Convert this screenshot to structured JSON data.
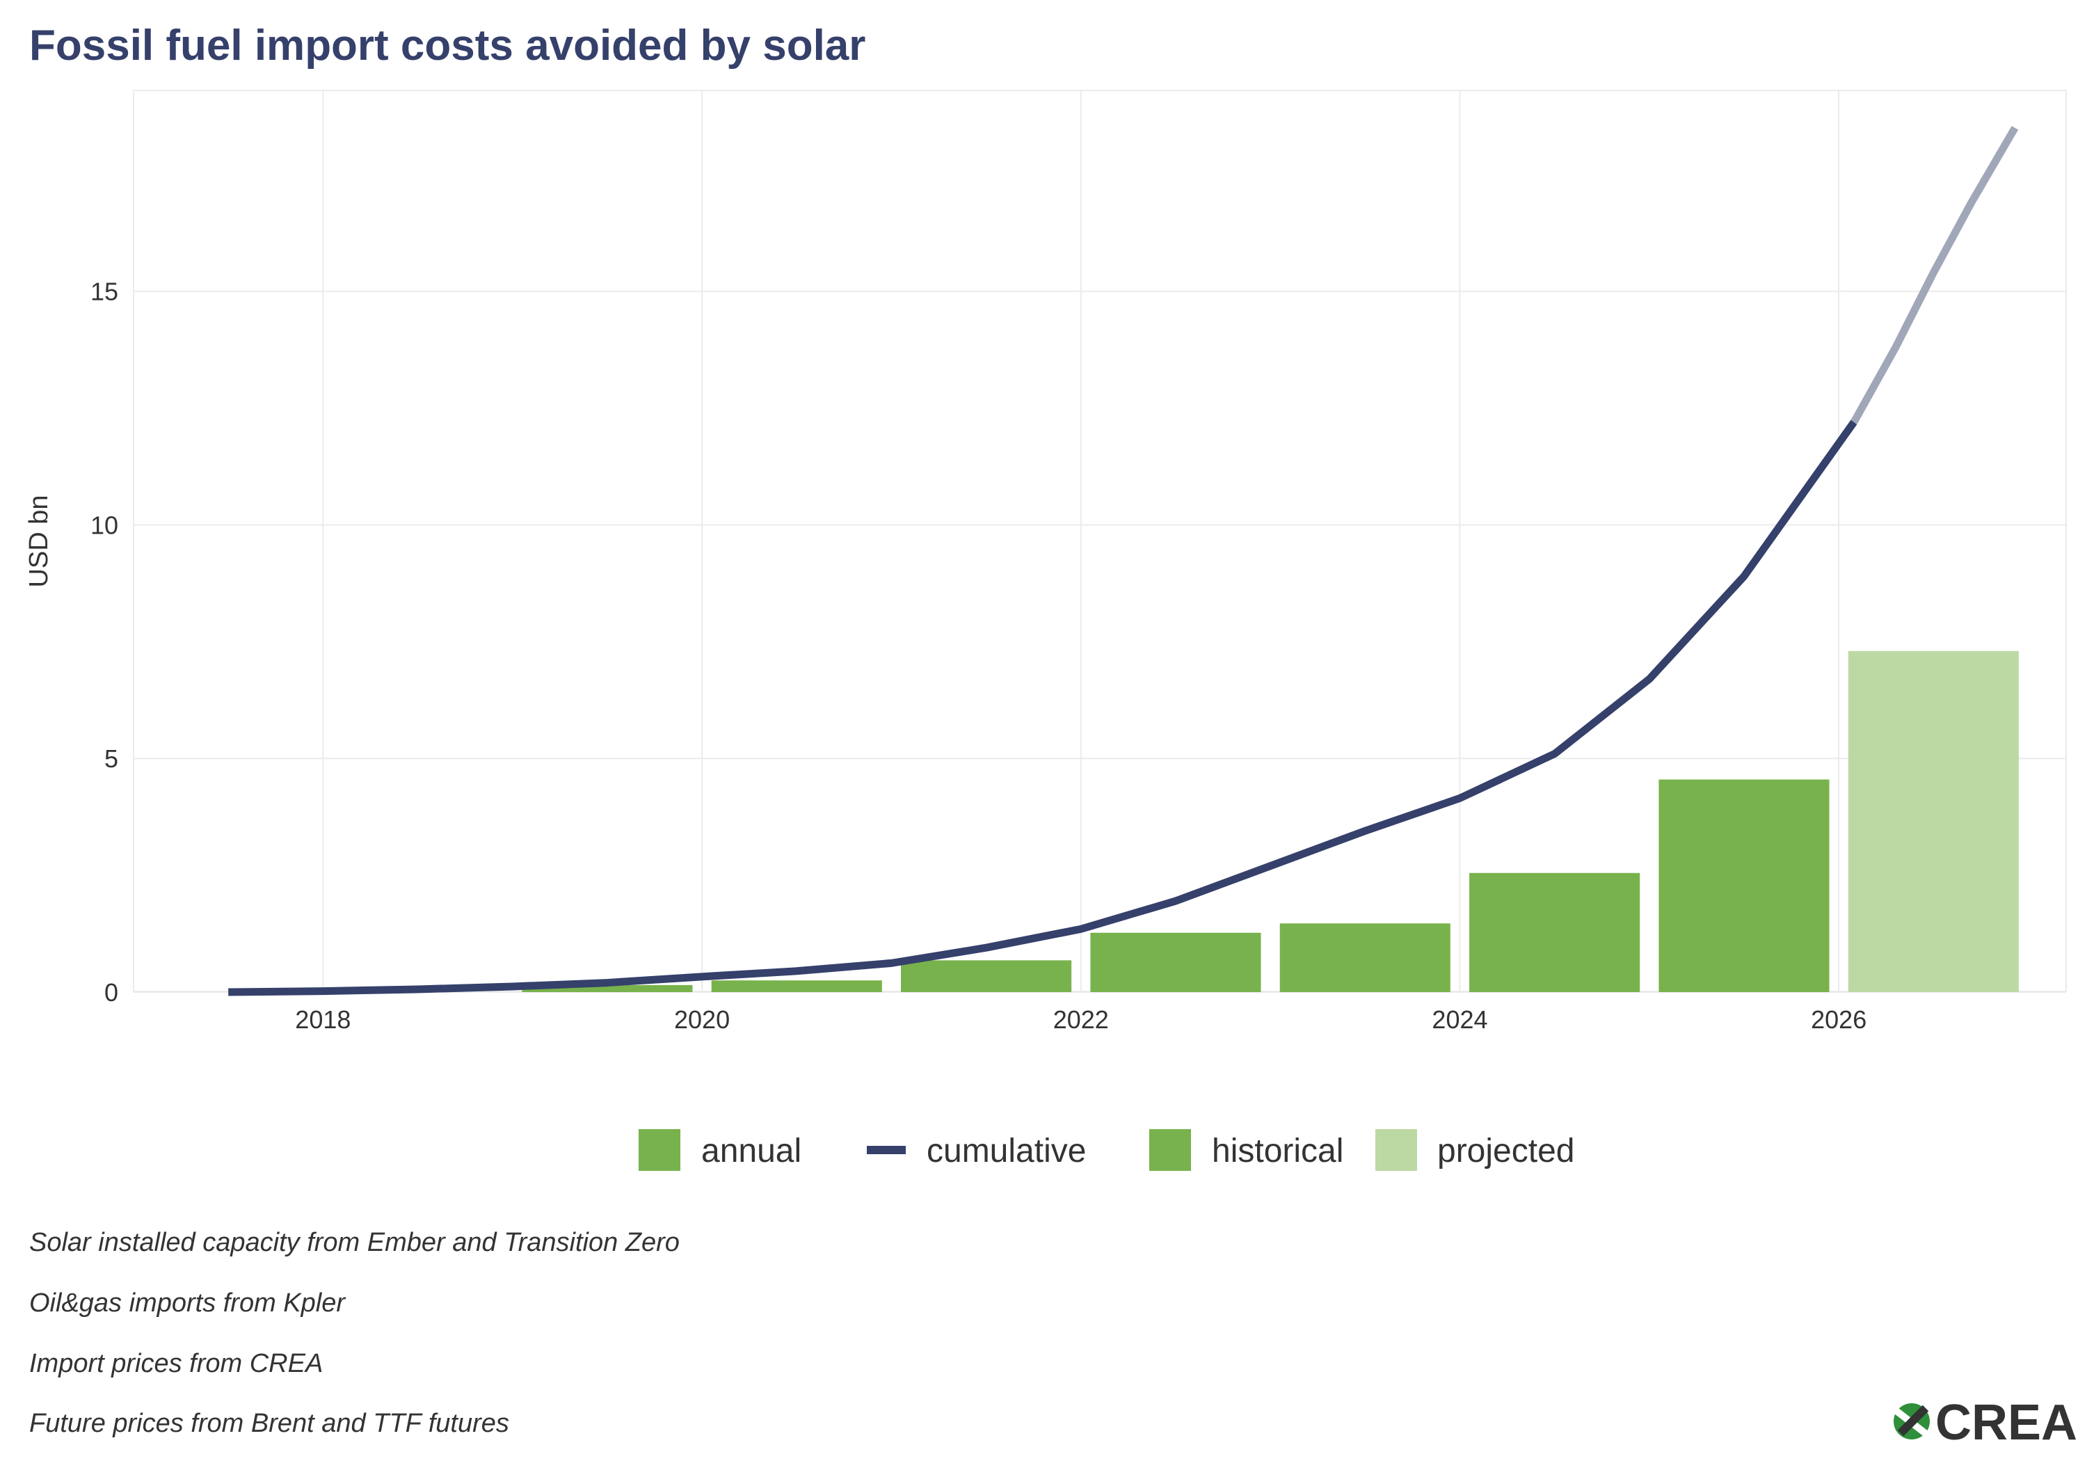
{
  "chart_data": {
    "type": "bar+line",
    "title": "Fossil fuel import costs avoided by solar",
    "xlabel": "",
    "ylabel": "USD bn",
    "xlim": [
      2017,
      2027.2
    ],
    "ylim": [
      0,
      19.3
    ],
    "x_ticks": [
      2018,
      2020,
      2022,
      2024,
      2026
    ],
    "x_tick_labels": [
      "2018",
      "2020",
      "2022",
      "2024",
      "2026"
    ],
    "y_ticks": [
      0,
      5,
      10,
      15
    ],
    "y_tick_labels": [
      "0",
      "5",
      "10",
      "15"
    ],
    "bars": {
      "name": "annual",
      "x": [
        2019.5,
        2020.5,
        2021.5,
        2022.5,
        2023.5,
        2024.5,
        2025.5,
        2026.5
      ],
      "values": [
        0.15,
        0.25,
        0.68,
        1.27,
        1.47,
        2.55,
        4.55,
        7.3
      ],
      "status": [
        "historical",
        "historical",
        "historical",
        "historical",
        "historical",
        "historical",
        "historical",
        "projected"
      ]
    },
    "line": {
      "name": "cumulative",
      "historical": {
        "x": [
          2017.5,
          2018.0,
          2018.5,
          2019.0,
          2019.5,
          2020.0,
          2020.5,
          2021.0,
          2021.5,
          2022.0,
          2022.5,
          2023.0,
          2023.5,
          2024.0,
          2024.5,
          2025.0,
          2025.5,
          2026.08
        ],
        "y": [
          0.0,
          0.02,
          0.06,
          0.12,
          0.2,
          0.33,
          0.45,
          0.62,
          0.95,
          1.35,
          1.95,
          2.7,
          3.45,
          4.15,
          5.1,
          6.7,
          8.9,
          12.2
        ]
      },
      "projected": {
        "x": [
          2026.08,
          2026.3,
          2026.5,
          2026.7,
          2026.93
        ],
        "y": [
          12.2,
          13.8,
          15.4,
          16.9,
          18.5
        ]
      }
    },
    "legend": {
      "position": "bottom",
      "entries": [
        {
          "label": "annual",
          "kind": "swatch",
          "color": "#78b24c"
        },
        {
          "label": "cumulative",
          "kind": "line",
          "color": "#35406b"
        },
        {
          "label": "historical",
          "kind": "swatch",
          "color": "#78b24c"
        },
        {
          "label": "projected",
          "kind": "swatch",
          "color": "#bcd9a4"
        }
      ]
    },
    "colors": {
      "historical_bar": "#78b24c",
      "projected_bar": "#bcd9a4",
      "cumulative_line": "#35406b",
      "projected_line": "#a0a7b8",
      "grid": "#ebebeb",
      "title": "#35406b"
    },
    "grid": true
  },
  "captions": [
    "Solar installed capacity from Ember and Transition Zero",
    "Oil&gas imports from Kpler",
    "Import prices from CREA",
    "Future prices from Brent and TTF futures"
  ],
  "logo": {
    "text": "CREA",
    "icon": "crea-logo-icon"
  }
}
